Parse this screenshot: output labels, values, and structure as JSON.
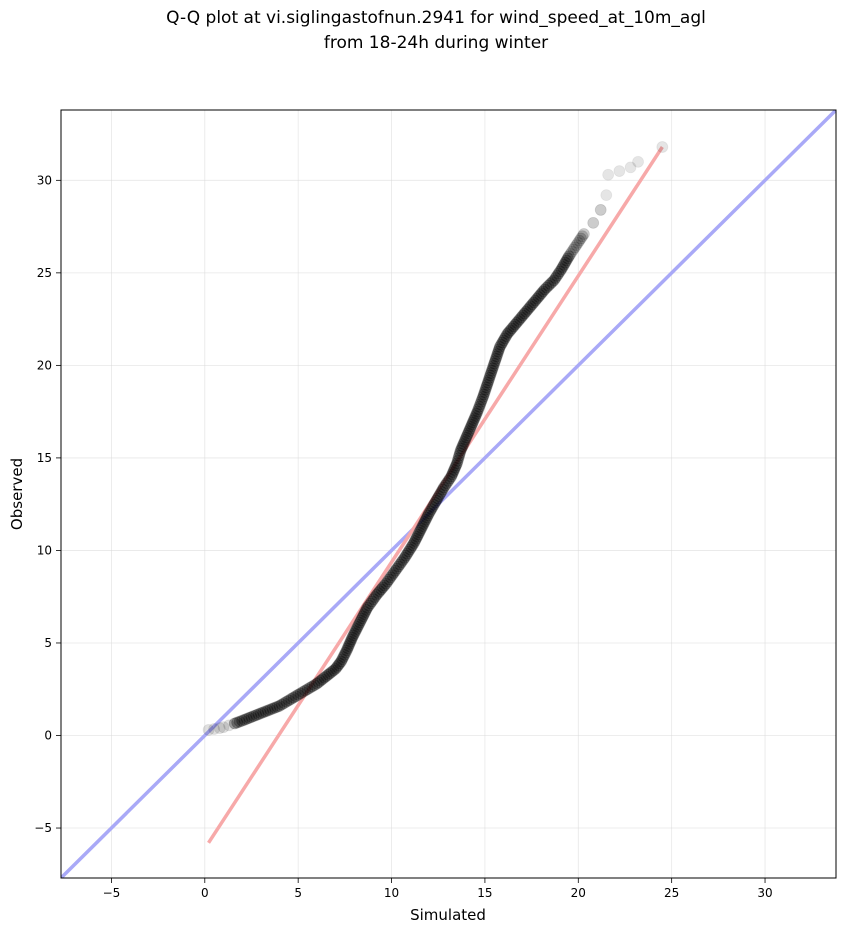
{
  "chart_data": {
    "type": "scatter",
    "title_line1": "Q-Q plot at vi.siglingastofnun.2941 for wind_speed_at_10m_agl",
    "title_line2": "from 18-24h during winter",
    "xlabel": "Simulated",
    "ylabel": "Observed",
    "xlim": [
      -7.7,
      33.8
    ],
    "ylim": [
      -7.7,
      33.8
    ],
    "xticks": [
      -5,
      0,
      5,
      10,
      15,
      20,
      25,
      30
    ],
    "yticks": [
      -5,
      0,
      5,
      10,
      15,
      20,
      25,
      30
    ],
    "grid": true,
    "point_color": "#000000",
    "quantiles": [
      [
        0.2,
        0.3
      ],
      [
        0.5,
        0.35
      ],
      [
        0.8,
        0.4
      ],
      [
        1.0,
        0.45
      ],
      [
        1.3,
        0.55
      ],
      [
        1.6,
        0.65
      ],
      [
        2.0,
        0.8
      ],
      [
        2.5,
        1.0
      ],
      [
        3.0,
        1.2
      ],
      [
        3.5,
        1.4
      ],
      [
        4.0,
        1.6
      ],
      [
        4.5,
        1.9
      ],
      [
        5.0,
        2.2
      ],
      [
        5.5,
        2.5
      ],
      [
        6.0,
        2.8
      ],
      [
        6.5,
        3.2
      ],
      [
        7.0,
        3.6
      ],
      [
        7.3,
        4.0
      ],
      [
        7.6,
        4.6
      ],
      [
        7.9,
        5.3
      ],
      [
        8.3,
        6.1
      ],
      [
        8.7,
        6.9
      ],
      [
        9.2,
        7.6
      ],
      [
        9.7,
        8.2
      ],
      [
        10.2,
        8.9
      ],
      [
        10.7,
        9.6
      ],
      [
        11.2,
        10.4
      ],
      [
        11.6,
        11.2
      ],
      [
        12.0,
        12.0
      ],
      [
        12.4,
        12.7
      ],
      [
        12.8,
        13.4
      ],
      [
        13.2,
        14.0
      ],
      [
        13.5,
        14.7
      ],
      [
        13.7,
        15.4
      ],
      [
        14.0,
        16.1
      ],
      [
        14.3,
        16.8
      ],
      [
        14.6,
        17.5
      ],
      [
        14.9,
        18.3
      ],
      [
        15.2,
        19.2
      ],
      [
        15.5,
        20.1
      ],
      [
        15.8,
        21.0
      ],
      [
        16.2,
        21.7
      ],
      [
        16.7,
        22.3
      ],
      [
        17.2,
        22.9
      ],
      [
        17.7,
        23.5
      ],
      [
        18.2,
        24.1
      ],
      [
        18.7,
        24.6
      ],
      [
        19.1,
        25.2
      ],
      [
        19.5,
        25.9
      ],
      [
        19.9,
        26.5
      ],
      [
        20.3,
        27.1
      ],
      [
        20.8,
        27.7
      ],
      [
        21.2,
        28.4
      ],
      [
        21.5,
        29.2
      ],
      [
        21.6,
        30.3
      ],
      [
        22.2,
        30.5
      ],
      [
        22.8,
        30.7
      ],
      [
        23.2,
        31.0
      ],
      [
        24.5,
        31.8
      ]
    ],
    "identity_line": {
      "color": "#a9a9f7",
      "from": [
        -7.7,
        -7.7
      ],
      "to": [
        33.8,
        33.8
      ]
    },
    "fit_line": {
      "color": "#f7a9a9",
      "from": [
        0.2,
        -5.8
      ],
      "to": [
        24.5,
        31.8
      ]
    }
  }
}
